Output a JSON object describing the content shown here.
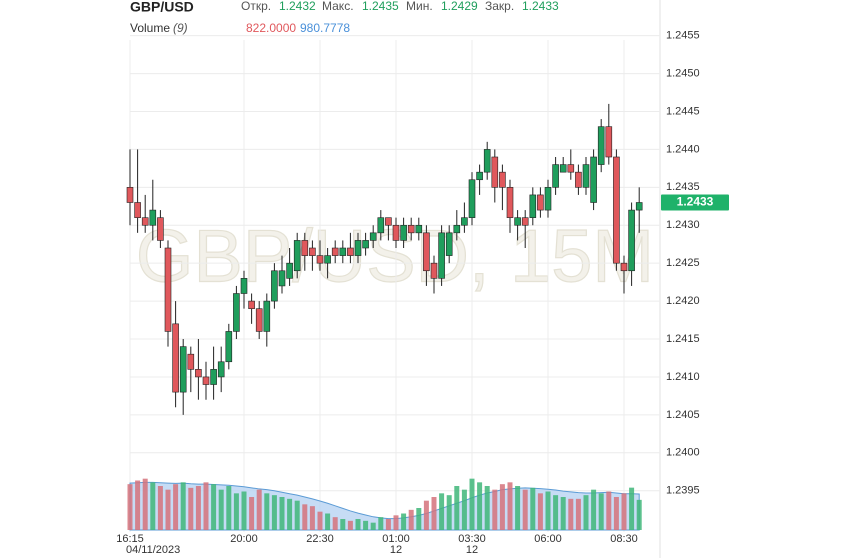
{
  "chart_data": {
    "type": "candlestick",
    "title": "GBP/USD",
    "watermark": "GBP/USD, 15M",
    "ohlc_legend": [
      {
        "label": "Откр.",
        "value": 1.2432
      },
      {
        "label": "Макс.",
        "value": 1.2435
      },
      {
        "label": "Мин.",
        "value": 1.2429
      },
      {
        "label": "Закр.",
        "value": 1.2433
      }
    ],
    "last_price": 1.2433,
    "up_color": "#1f9e5c",
    "down_color": "#e0585c",
    "x": [
      "16:15",
      "16:30",
      "16:45",
      "17:00",
      "17:15",
      "17:30",
      "17:45",
      "18:00",
      "18:15",
      "18:30",
      "18:45",
      "19:00",
      "19:15",
      "19:30",
      "19:45",
      "20:00",
      "20:15",
      "20:30",
      "20:45",
      "21:00",
      "21:15",
      "21:30",
      "21:45",
      "22:00",
      "22:15",
      "22:30",
      "22:45",
      "23:00",
      "23:15",
      "23:30",
      "23:45",
      "00:00",
      "00:15",
      "00:30",
      "00:45",
      "01:00",
      "01:15",
      "01:30",
      "01:45",
      "02:00",
      "02:15",
      "02:30",
      "02:45",
      "03:00",
      "03:15",
      "03:30",
      "03:45",
      "04:00",
      "04:15",
      "04:30",
      "04:45",
      "05:00",
      "05:15",
      "05:30",
      "05:45",
      "06:00",
      "06:15",
      "06:30",
      "06:45",
      "07:00",
      "07:15",
      "07:30",
      "07:45",
      "08:00",
      "08:15",
      "08:30",
      "08:45",
      "09:00"
    ],
    "xticks": [
      "16:15",
      "20:00",
      "22:30",
      "01:00",
      "03:30",
      "06:00",
      "08:30"
    ],
    "xtick_sublabels": [
      "04/11/2023",
      null,
      null,
      "12",
      "12",
      null,
      null
    ],
    "open": [
      1.2435,
      1.2433,
      1.2431,
      1.243,
      1.2431,
      1.2427,
      1.2417,
      1.2408,
      1.2413,
      1.2411,
      1.241,
      1.2409,
      1.241,
      1.2412,
      1.2416,
      1.2421,
      1.242,
      1.2419,
      1.2416,
      1.242,
      1.2422,
      1.2423,
      1.2424,
      1.2428,
      1.2427,
      1.2426,
      1.2425,
      1.2427,
      1.2426,
      1.2427,
      1.2426,
      1.2427,
      1.2428,
      1.2429,
      1.2431,
      1.243,
      1.2428,
      1.243,
      1.2429,
      1.2429,
      1.2425,
      1.2423,
      1.2426,
      1.2429,
      1.243,
      1.2431,
      1.2436,
      1.2437,
      1.2439,
      1.2437,
      1.2435,
      1.243,
      1.2431,
      1.2431,
      1.2434,
      1.2432,
      1.2435,
      1.2437,
      1.2438,
      1.2437,
      1.2435,
      1.2433,
      1.2438,
      1.2443,
      1.2439,
      1.2425,
      1.2424,
      1.2432
    ],
    "high": [
      1.244,
      1.244,
      1.2434,
      1.2436,
      1.2432,
      1.2428,
      1.242,
      1.2415,
      1.2414,
      1.2415,
      1.2412,
      1.2414,
      1.2414,
      1.2417,
      1.2422,
      1.2424,
      1.2421,
      1.242,
      1.2421,
      1.2425,
      1.2426,
      1.2427,
      1.2429,
      1.2429,
      1.2428,
      1.2428,
      1.2427,
      1.2428,
      1.2428,
      1.2429,
      1.2429,
      1.2429,
      1.243,
      1.2432,
      1.2431,
      1.2431,
      1.2431,
      1.2431,
      1.2431,
      1.243,
      1.2426,
      1.243,
      1.243,
      1.2432,
      1.2433,
      1.2437,
      1.2438,
      1.2441,
      1.244,
      1.2438,
      1.2436,
      1.2432,
      1.2432,
      1.2435,
      1.2435,
      1.2436,
      1.2439,
      1.2439,
      1.244,
      1.2438,
      1.2439,
      1.244,
      1.2444,
      1.2446,
      1.244,
      1.2426,
      1.2433,
      1.2435
    ],
    "low": [
      1.243,
      1.2429,
      1.2429,
      1.2428,
      1.2427,
      1.2414,
      1.2406,
      1.2405,
      1.2408,
      1.2407,
      1.2407,
      1.2407,
      1.2408,
      1.2411,
      1.2415,
      1.2419,
      1.2417,
      1.2415,
      1.2414,
      1.2419,
      1.2421,
      1.2422,
      1.2423,
      1.2424,
      1.2424,
      1.2424,
      1.2423,
      1.2425,
      1.2425,
      1.2425,
      1.2425,
      1.2426,
      1.2427,
      1.2428,
      1.2428,
      1.2427,
      1.2427,
      1.2428,
      1.2428,
      1.2422,
      1.2421,
      1.2422,
      1.2425,
      1.2428,
      1.2429,
      1.243,
      1.2434,
      1.2436,
      1.2433,
      1.2432,
      1.2429,
      1.2428,
      1.2427,
      1.243,
      1.2431,
      1.2431,
      1.2434,
      1.2437,
      1.2436,
      1.2434,
      1.2434,
      1.2432,
      1.2437,
      1.2438,
      1.2424,
      1.2421,
      1.2422,
      1.2429
    ],
    "close": [
      1.2433,
      1.2431,
      1.243,
      1.2432,
      1.2428,
      1.2416,
      1.2408,
      1.2414,
      1.2411,
      1.241,
      1.2409,
      1.2411,
      1.2412,
      1.2416,
      1.2421,
      1.2423,
      1.2419,
      1.2416,
      1.242,
      1.2424,
      1.2424,
      1.2425,
      1.2428,
      1.2426,
      1.2426,
      1.2425,
      1.2426,
      1.2426,
      1.2427,
      1.2426,
      1.2428,
      1.2428,
      1.2429,
      1.2431,
      1.243,
      1.2428,
      1.243,
      1.2429,
      1.243,
      1.2424,
      1.2423,
      1.2429,
      1.2429,
      1.243,
      1.2431,
      1.2436,
      1.2437,
      1.244,
      1.2435,
      1.2435,
      1.2431,
      1.2431,
      1.243,
      1.2434,
      1.2432,
      1.2435,
      1.2438,
      1.2438,
      1.2437,
      1.2435,
      1.2438,
      1.2439,
      1.2443,
      1.2439,
      1.2425,
      1.2424,
      1.2432,
      1.2433
    ],
    "ylim": [
      1.23885,
      1.24597
    ],
    "yticks": [
      1.2395,
      {
        "value": 1.24,
        "label": "1.2400"
      },
      1.2405,
      {
        "value": 1.241,
        "label": "1.2410"
      },
      1.2415,
      {
        "value": 1.242,
        "label": "1.2420"
      },
      1.2425,
      {
        "value": 1.243,
        "label": "1.2430"
      },
      1.2435,
      {
        "value": 1.244,
        "label": "1.2440"
      },
      1.2445,
      {
        "value": 1.245,
        "label": "1.2450"
      },
      1.2455
    ],
    "grid": true,
    "volume": {
      "title": "Volume",
      "period": "(9)",
      "values": [
        1250,
        1350,
        1400,
        1300,
        1200,
        1100,
        1250,
        1300,
        1150,
        1200,
        1300,
        1250,
        1100,
        1200,
        1000,
        1050,
        900,
        1100,
        1000,
        950,
        900,
        850,
        800,
        700,
        650,
        500,
        450,
        350,
        300,
        250,
        300,
        250,
        200,
        350,
        300,
        400,
        450,
        550,
        600,
        800,
        900,
        1000,
        950,
        1200,
        1100,
        1400,
        1300,
        1200,
        1100,
        1250,
        1300,
        1200,
        1100,
        1150,
        1000,
        1050,
        950,
        900,
        850,
        850,
        950,
        1100,
        1000,
        1050,
        900,
        1000,
        1155,
        822
      ],
      "ma": [
        1280,
        1290,
        1300,
        1300,
        1290,
        1280,
        1270,
        1280,
        1260,
        1250,
        1250,
        1240,
        1230,
        1220,
        1200,
        1180,
        1150,
        1120,
        1100,
        1070,
        1030,
        990,
        950,
        900,
        850,
        790,
        730,
        660,
        590,
        520,
        460,
        410,
        360,
        330,
        310,
        310,
        330,
        360,
        400,
        450,
        520,
        590,
        660,
        730,
        800,
        880,
        950,
        1010,
        1050,
        1100,
        1120,
        1140,
        1150,
        1140,
        1130,
        1110,
        1090,
        1060,
        1040,
        1020,
        1010,
        1010,
        1020,
        1030,
        1010,
        990,
        990,
        980.7778
      ],
      "legend_values": [
        {
          "value": 822,
          "label": "822.0000",
          "color": "#e0585c"
        },
        {
          "value": 980.7778,
          "label": "980.7778",
          "color": "#4a90d9"
        }
      ],
      "ylim": [
        0,
        1500
      ],
      "ma_color": "#5b9bd5"
    }
  }
}
